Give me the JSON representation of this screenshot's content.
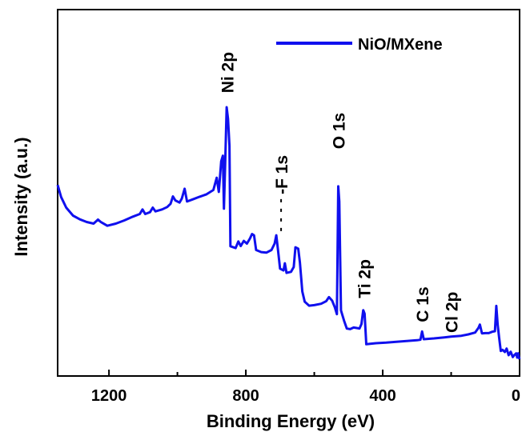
{
  "chart_data": {
    "type": "line",
    "title": "",
    "xlabel": "Binding Energy (eV)",
    "ylabel": "Intensity (a.u.)",
    "xlim": [
      1350,
      0
    ],
    "ylim": [
      0,
      100
    ],
    "x_reversed": true,
    "y_ticks_shown": false,
    "grid": false,
    "x_ticks": [
      {
        "value": 1200,
        "label": "1200"
      },
      {
        "value": 800,
        "label": "800"
      },
      {
        "value": 400,
        "label": "400"
      },
      {
        "value": 0,
        "label": "0"
      }
    ],
    "legend": {
      "placement": "top-right",
      "entries": [
        "NiO/MXene"
      ]
    },
    "series": [
      {
        "name": "NiO/MXene",
        "color": "#1010ee",
        "points": [
          [
            1350,
            61.5
          ],
          [
            1340,
            57
          ],
          [
            1325,
            53
          ],
          [
            1305,
            50
          ],
          [
            1285,
            48.6
          ],
          [
            1265,
            47.6
          ],
          [
            1245,
            47
          ],
          [
            1232,
            48.5
          ],
          [
            1224,
            47.6
          ],
          [
            1205,
            46.2
          ],
          [
            1180,
            47
          ],
          [
            1155,
            48.2
          ],
          [
            1130,
            49.6
          ],
          [
            1110,
            50.6
          ],
          [
            1102,
            52.3
          ],
          [
            1094,
            50.6
          ],
          [
            1080,
            51.3
          ],
          [
            1072,
            53
          ],
          [
            1064,
            51.6
          ],
          [
            1045,
            52.3
          ],
          [
            1030,
            53.2
          ],
          [
            1020,
            54.4
          ],
          [
            1013,
            57.2
          ],
          [
            1006,
            55.7
          ],
          [
            994,
            54.9
          ],
          [
            987,
            56.4
          ],
          [
            979,
            60.1
          ],
          [
            972,
            55.3
          ],
          [
            955,
            56.1
          ],
          [
            935,
            57.1
          ],
          [
            915,
            58
          ],
          [
            895,
            59.6
          ],
          [
            885,
            64.2
          ],
          [
            879,
            58.9
          ],
          [
            872,
            70.4
          ],
          [
            867,
            72.5
          ],
          [
            864,
            52.6
          ],
          [
            860,
            71
          ],
          [
            856,
            90.7
          ],
          [
            852,
            86.3
          ],
          [
            848,
            76.3
          ],
          [
            845,
            38.5
          ],
          [
            830,
            37.8
          ],
          [
            822,
            40.3
          ],
          [
            815,
            38.6
          ],
          [
            806,
            40.5
          ],
          [
            797,
            39.5
          ],
          [
            788,
            41.4
          ],
          [
            782,
            43.1
          ],
          [
            776,
            42.6
          ],
          [
            770,
            37.1
          ],
          [
            755,
            36.3
          ],
          [
            740,
            36.1
          ],
          [
            725,
            37.1
          ],
          [
            716,
            39.5
          ],
          [
            711,
            42.6
          ],
          [
            706,
            36.9
          ],
          [
            700,
            30.1
          ],
          [
            690,
            29.4
          ],
          [
            686,
            32.1
          ],
          [
            681,
            28.5
          ],
          [
            668,
            28.9
          ],
          [
            660,
            30.7
          ],
          [
            655,
            38.1
          ],
          [
            647,
            37.6
          ],
          [
            642,
            32.4
          ],
          [
            635,
            21.5
          ],
          [
            628,
            17.7
          ],
          [
            615,
            16.2
          ],
          [
            600,
            16.4
          ],
          [
            580,
            16.9
          ],
          [
            565,
            17.9
          ],
          [
            557,
            19.4
          ],
          [
            548,
            18.1
          ],
          [
            540,
            15.6
          ],
          [
            534,
            13
          ],
          [
            530,
            61
          ],
          [
            527,
            55.3
          ],
          [
            522,
            14.4
          ],
          [
            513,
            10.6
          ],
          [
            505,
            7.6
          ],
          [
            495,
            7.4
          ],
          [
            485,
            8
          ],
          [
            476,
            7.8
          ],
          [
            468,
            7.6
          ],
          [
            462,
            9.3
          ],
          [
            457,
            14.5
          ],
          [
            453,
            13.2
          ],
          [
            448,
            1.7
          ],
          [
            420,
            2.1
          ],
          [
            390,
            2.3
          ],
          [
            360,
            2.6
          ],
          [
            330,
            2.9
          ],
          [
            300,
            3.2
          ],
          [
            290,
            3.4
          ],
          [
            285,
            6.5
          ],
          [
            280,
            3.6
          ],
          [
            250,
            3.9
          ],
          [
            220,
            4.3
          ],
          [
            200,
            4.6
          ],
          [
            170,
            4.9
          ],
          [
            150,
            5.4
          ],
          [
            130,
            6.1
          ],
          [
            120,
            7.9
          ],
          [
            116,
            9.1
          ],
          [
            110,
            5.8
          ],
          [
            100,
            5.9
          ],
          [
            90,
            5.9
          ],
          [
            80,
            6.4
          ],
          [
            72,
            6.6
          ],
          [
            68,
            16.1
          ],
          [
            64,
            9.1
          ],
          [
            60,
            4.3
          ],
          [
            55,
            -0.8
          ],
          [
            50,
            -0.4
          ],
          [
            43,
            -1.2
          ],
          [
            38,
            0.1
          ],
          [
            32,
            -2.4
          ],
          [
            26,
            -1.1
          ],
          [
            20,
            -3.1
          ],
          [
            15,
            -2.3
          ],
          [
            10,
            -1.7
          ],
          [
            7,
            -3.3
          ],
          [
            4,
            -1.7
          ],
          [
            2,
            -3.2
          ],
          [
            0,
            -3.9
          ]
        ]
      }
    ],
    "annotations": [
      {
        "text": "Ni 2p",
        "x": 855,
        "y": 96
      },
      {
        "text": "O 1s",
        "x": 530,
        "y": 75
      },
      {
        "text": "-F 1s",
        "x": 697,
        "y": 58
      },
      {
        "text": "Ti 2p",
        "x": 455,
        "y": 19
      },
      {
        "text": "C 1s",
        "x": 285,
        "y": 10
      },
      {
        "text": "Cl 2p",
        "x": 200,
        "y": 6
      }
    ]
  }
}
